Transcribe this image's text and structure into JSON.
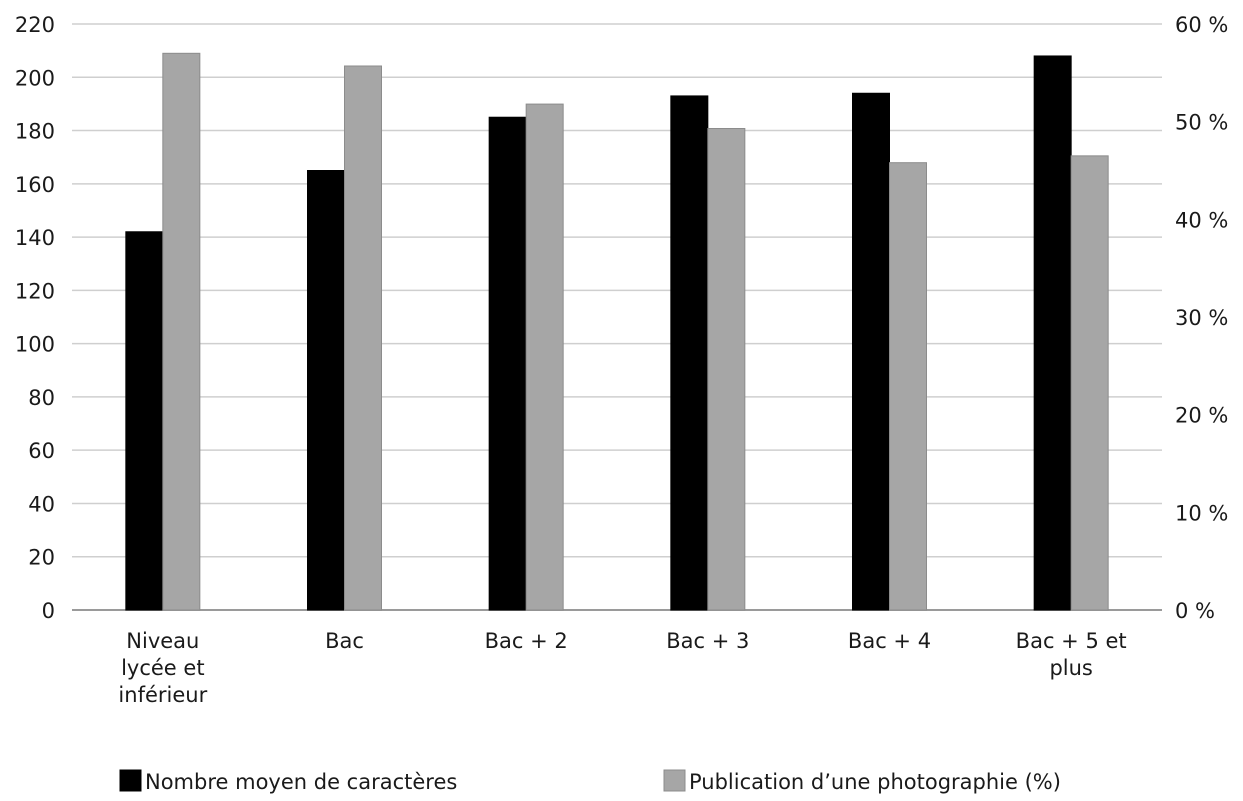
{
  "chart_data": {
    "type": "bar",
    "categories": [
      [
        "Niveau",
        "lycée et",
        "inférieur"
      ],
      [
        "Bac"
      ],
      [
        "Bac + 2"
      ],
      [
        "Bac + 3"
      ],
      [
        "Bac + 4"
      ],
      [
        "Bac + 5 et",
        "plus"
      ]
    ],
    "series": [
      {
        "name": "Nombre moyen de caractères",
        "axis": "left",
        "color": "#000000",
        "values": [
          142,
          165,
          185,
          193,
          194,
          208
        ]
      },
      {
        "name": "Publication d’une photographie (%)",
        "axis": "right",
        "color": "#a6a6a6",
        "values": [
          57,
          55.7,
          51.8,
          49.3,
          45.8,
          46.5
        ]
      }
    ],
    "y_left": {
      "ylim": [
        0,
        220
      ],
      "ticks": [
        "0",
        "20",
        "40",
        "60",
        "80",
        "100",
        "120",
        "140",
        "160",
        "180",
        "200",
        "220"
      ]
    },
    "y_right": {
      "ylim": [
        0,
        60
      ],
      "ticks": [
        "0 %",
        "10 %",
        "20 %",
        "30 %",
        "40 %",
        "50 %",
        "60 %"
      ]
    },
    "grid": true,
    "legend": "bottom"
  }
}
